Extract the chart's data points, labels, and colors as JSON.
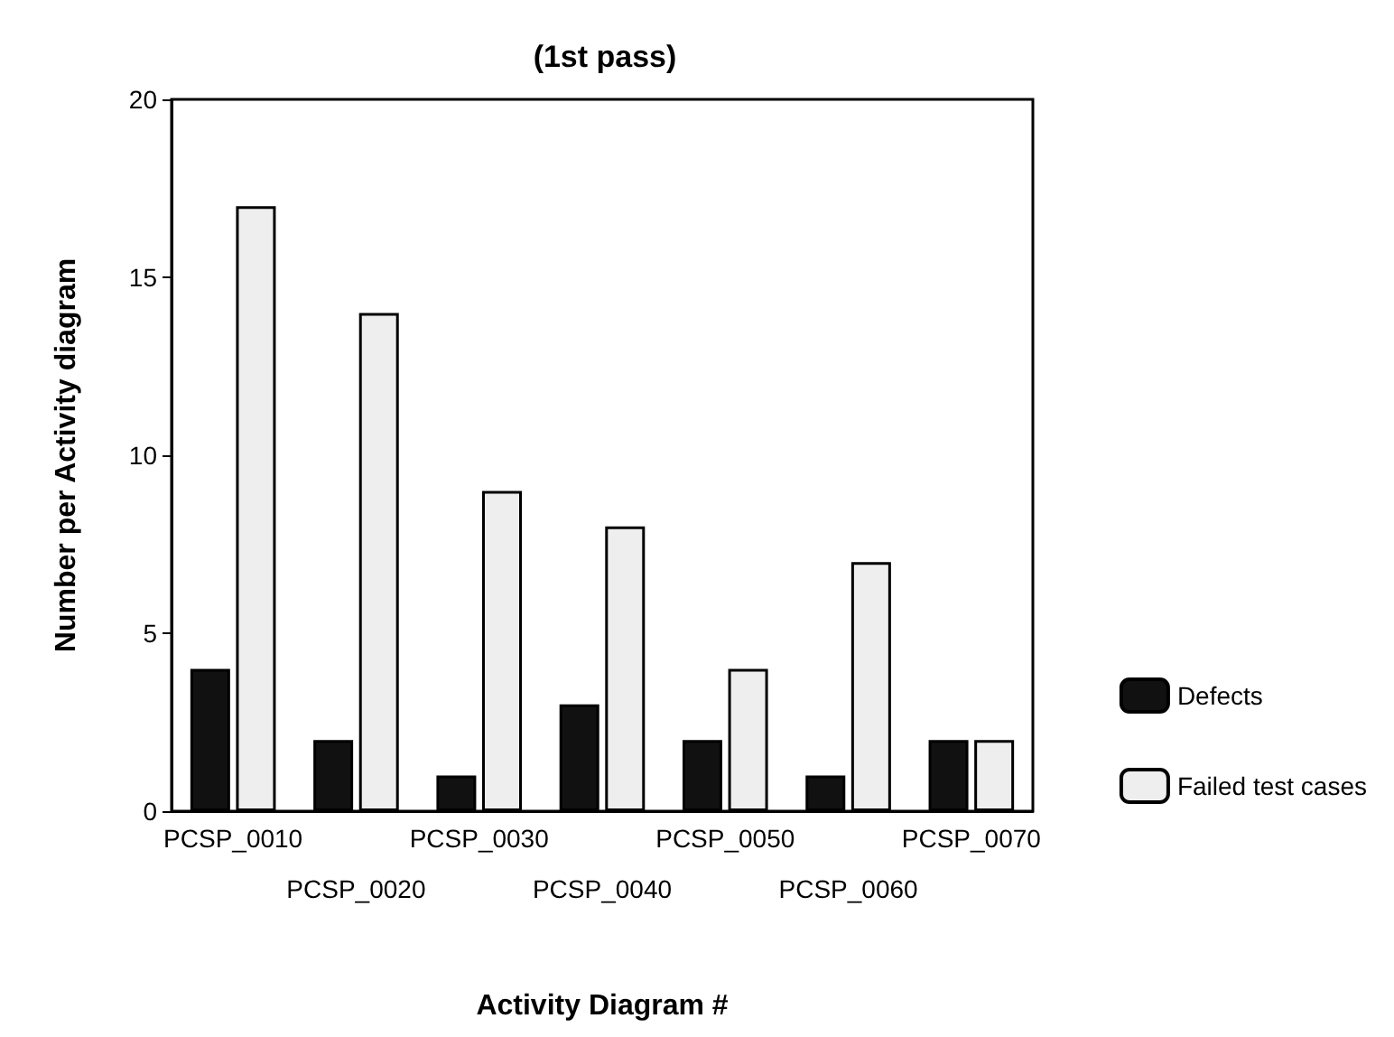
{
  "chart_data": {
    "type": "bar",
    "title": "(1st pass)",
    "xlabel": "Activity Diagram #",
    "ylabel": "Number per Activity diagram",
    "categories": [
      "PCSP_0010",
      "PCSP_0020",
      "PCSP_0030",
      "PCSP_0040",
      "PCSP_0050",
      "PCSP_0060",
      "PCSP_0070"
    ],
    "series": [
      {
        "name": "Defects",
        "color": "#111111",
        "values": [
          4,
          2,
          1,
          3,
          2,
          1,
          2
        ]
      },
      {
        "name": "Failed test cases",
        "color": "#eeeeee",
        "values": [
          17,
          14,
          9,
          8,
          4,
          7,
          2
        ]
      }
    ],
    "ylim": [
      0,
      20
    ],
    "yticks": [
      0,
      5,
      10,
      15,
      20
    ],
    "grid": false,
    "legend": "right"
  }
}
